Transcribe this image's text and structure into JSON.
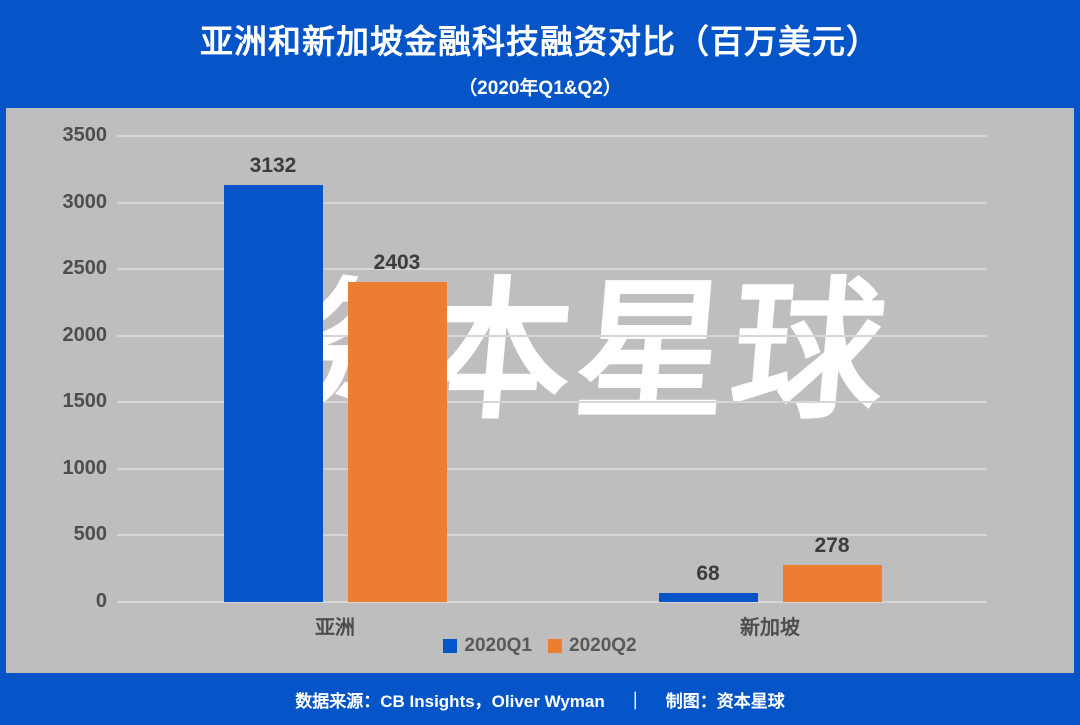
{
  "header": {
    "title": "亚洲和新加坡金融科技融资对比（百万美元）",
    "subtitle": "（2020年Q1&Q2）"
  },
  "watermark": "资本星球",
  "footer": {
    "source": "数据来源：CB Insights，Oliver Wyman",
    "separator": "｜",
    "credit": "制图：资本星球"
  },
  "colors": {
    "background_blue": "#0554C8",
    "panel_gray": "#BEBEBE",
    "gridline_gray": "#D6D6D6",
    "bar_blue": "#0554C8",
    "bar_orange": "#ED7D31",
    "axis_text": "#4E4E4E",
    "value_text": "#3C3C3C",
    "watermark_white": "#FFFFFF"
  },
  "chart_data": {
    "type": "bar",
    "title": "亚洲和新加坡金融科技融资对比（百万美元）",
    "subtitle": "（2020年Q1&Q2）",
    "categories": [
      "亚洲",
      "新加坡"
    ],
    "series": [
      {
        "name": "2020Q1",
        "color": "#0554C8",
        "values": [
          3132,
          68
        ]
      },
      {
        "name": "2020Q2",
        "color": "#ED7D31",
        "values": [
          2403,
          278
        ]
      }
    ],
    "ylabel": "",
    "xlabel": "",
    "ylim": [
      0,
      3500
    ],
    "ytick_step": 500,
    "yticks": [
      0,
      500,
      1000,
      1500,
      2000,
      2500,
      3000,
      3500
    ],
    "grid": true,
    "legend_position": "bottom",
    "bar_value_labels": true
  }
}
